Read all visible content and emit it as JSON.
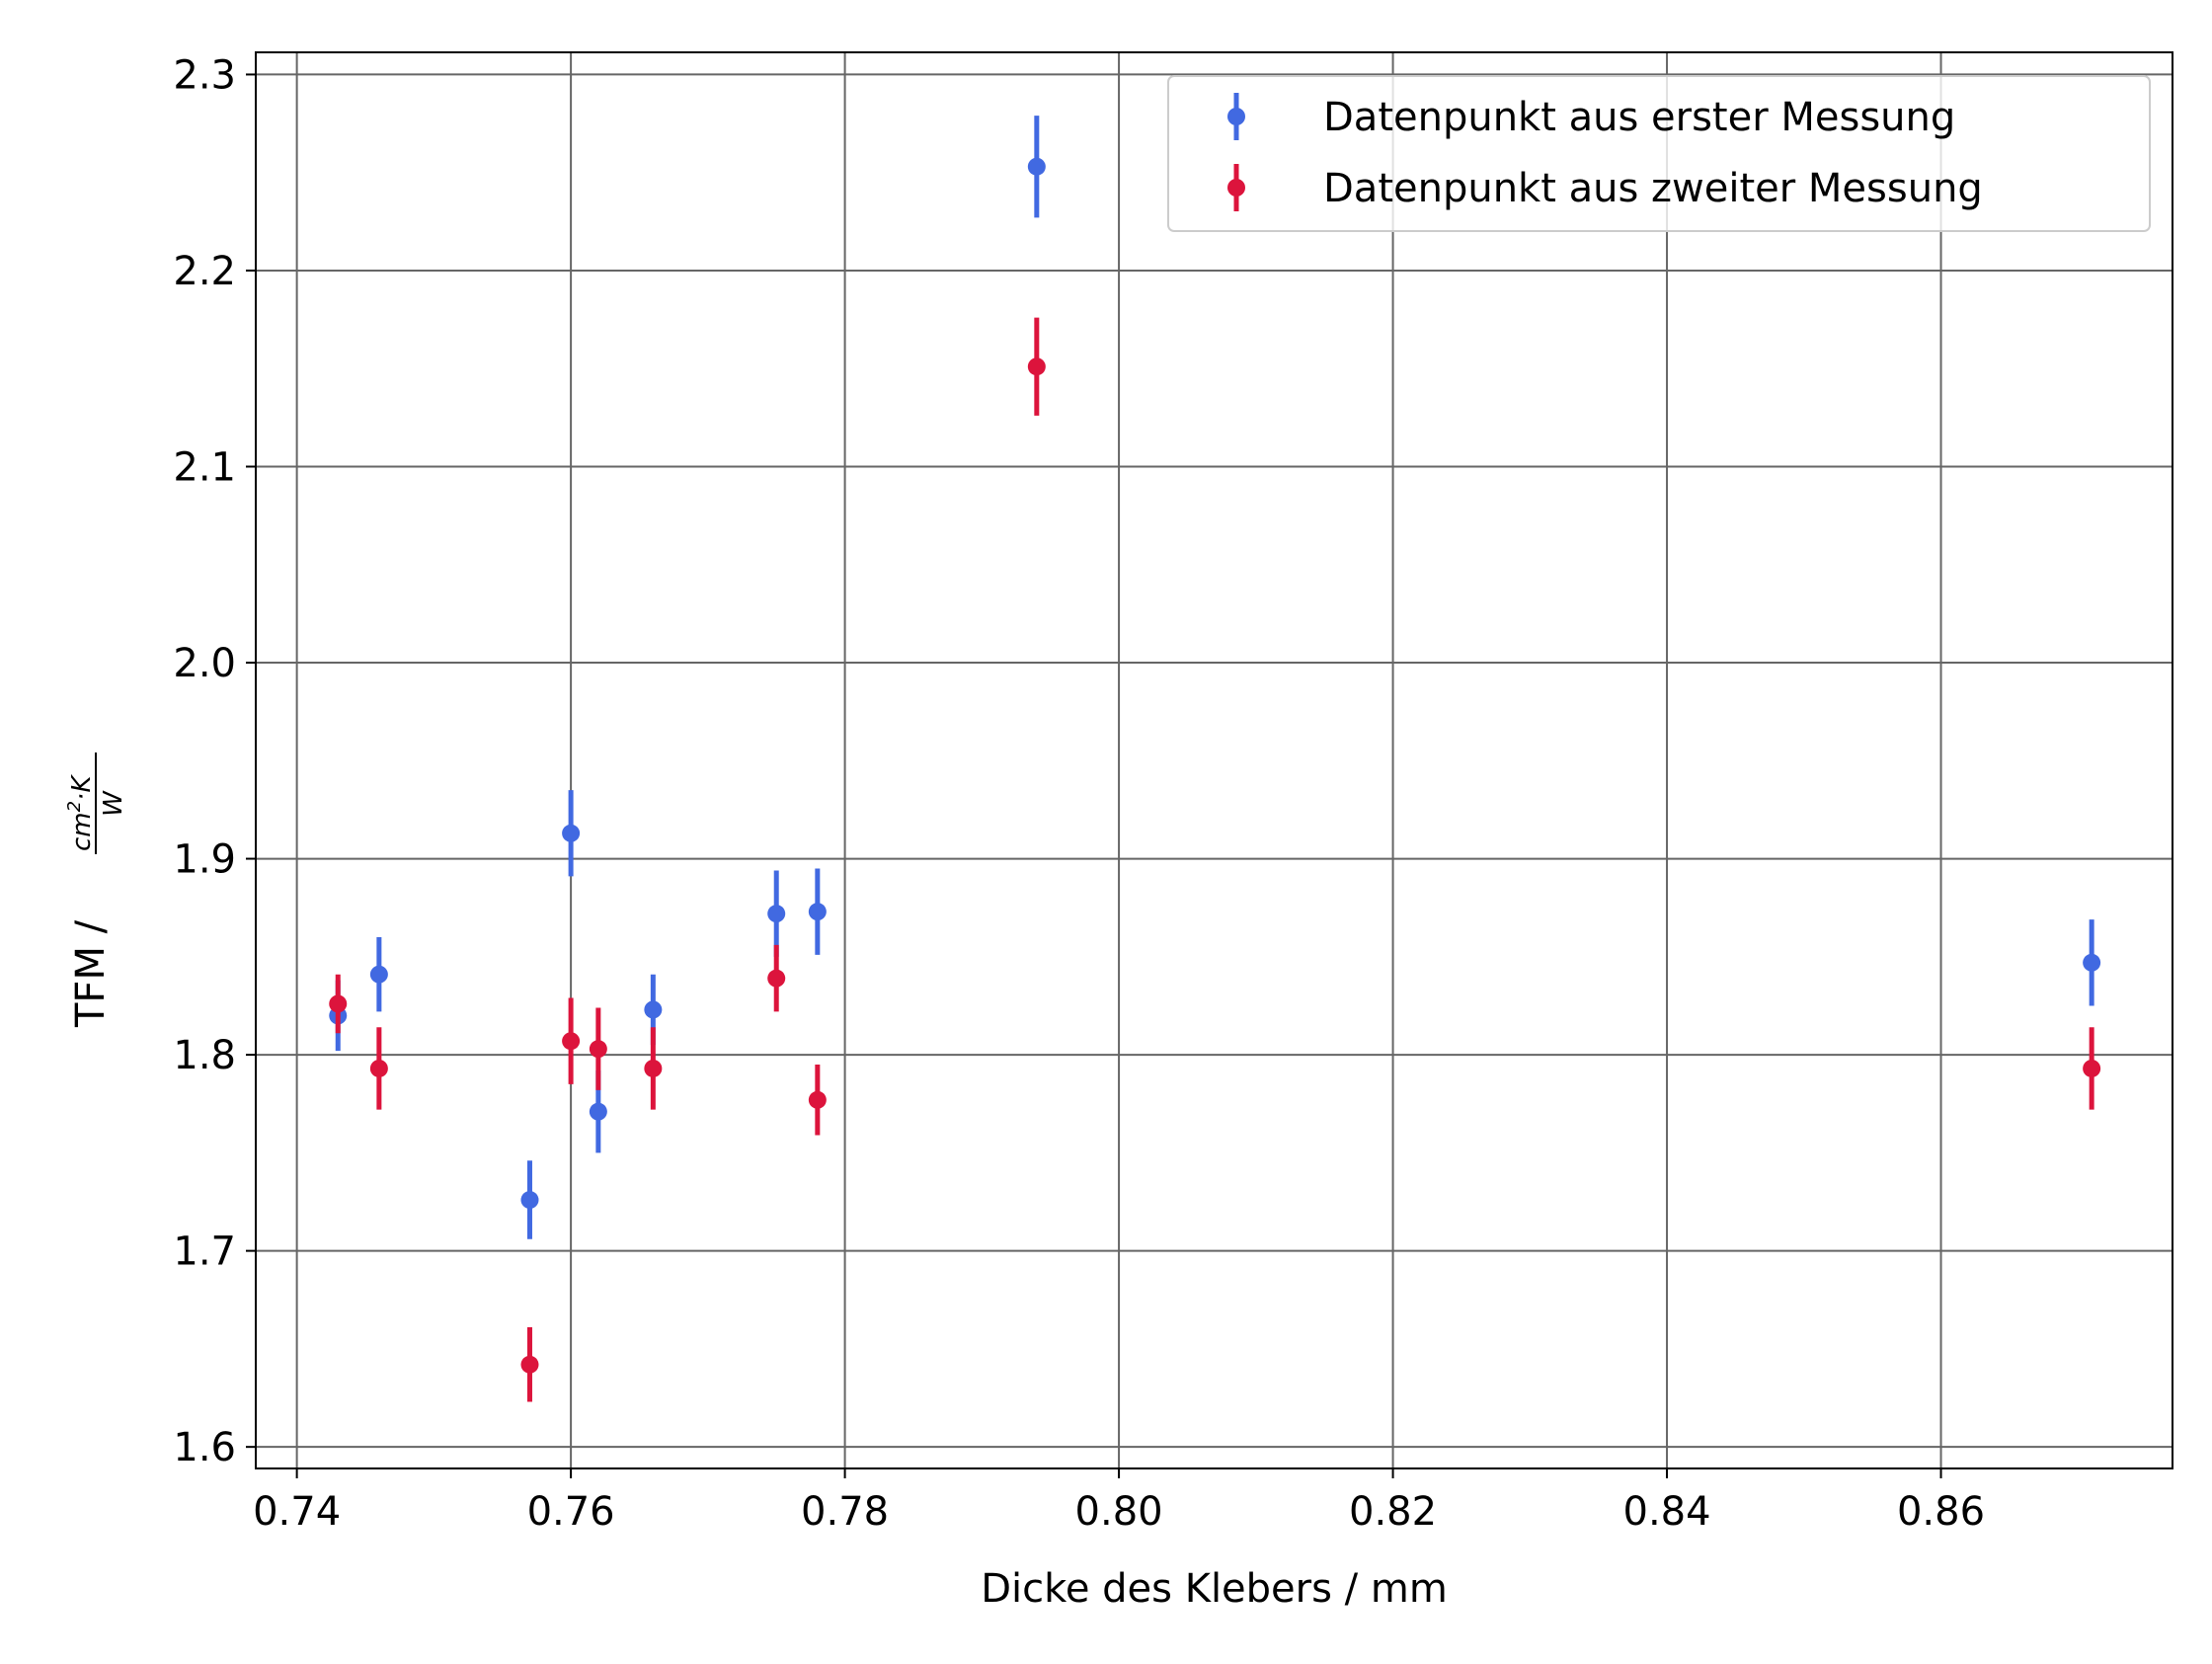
{
  "chart_data": {
    "type": "scatter",
    "title": "",
    "xlabel": "Dicke des Klebers / mm",
    "ylabel": {
      "prefix": "TFM / ",
      "numerator": "cm",
      "numerator_sup": "2",
      "numerator_suffix": "·K",
      "denominator": "W"
    },
    "xlim": [
      0.737,
      0.8769
    ],
    "ylim": [
      1.589,
      2.3113
    ],
    "xticks": [
      0.74,
      0.76,
      0.78,
      0.8,
      0.82,
      0.84,
      0.86
    ],
    "xtick_labels": [
      "0.74",
      "0.76",
      "0.78",
      "0.80",
      "0.82",
      "0.84",
      "0.86"
    ],
    "yticks": [
      1.6,
      1.7,
      1.8,
      1.9,
      2.0,
      2.1,
      2.2,
      2.3
    ],
    "ytick_labels": [
      "1.6",
      "1.7",
      "1.8",
      "1.9",
      "2.0",
      "2.1",
      "2.2",
      "2.3"
    ],
    "grid": true,
    "legend_position": "top-right",
    "series": [
      {
        "name": "Datenpunkt aus erster Messung",
        "color": "#4169e1",
        "points": [
          {
            "x": 0.743,
            "y": 1.82,
            "err": 0.018
          },
          {
            "x": 0.746,
            "y": 1.841,
            "err": 0.019
          },
          {
            "x": 0.757,
            "y": 1.726,
            "err": 0.02
          },
          {
            "x": 0.76,
            "y": 1.913,
            "err": 0.022
          },
          {
            "x": 0.762,
            "y": 1.771,
            "err": 0.021
          },
          {
            "x": 0.766,
            "y": 1.823,
            "err": 0.018
          },
          {
            "x": 0.775,
            "y": 1.872,
            "err": 0.022
          },
          {
            "x": 0.778,
            "y": 1.873,
            "err": 0.022
          },
          {
            "x": 0.794,
            "y": 2.253,
            "err": 0.026
          },
          {
            "x": 0.871,
            "y": 1.847,
            "err": 0.022
          }
        ]
      },
      {
        "name": "Datenpunkt aus zweiter Messung",
        "color": "#dc143c",
        "points": [
          {
            "x": 0.743,
            "y": 1.826,
            "err": 0.015
          },
          {
            "x": 0.746,
            "y": 1.793,
            "err": 0.021
          },
          {
            "x": 0.757,
            "y": 1.642,
            "err": 0.019
          },
          {
            "x": 0.76,
            "y": 1.807,
            "err": 0.022
          },
          {
            "x": 0.762,
            "y": 1.803,
            "err": 0.021
          },
          {
            "x": 0.766,
            "y": 1.793,
            "err": 0.021
          },
          {
            "x": 0.775,
            "y": 1.839,
            "err": 0.017
          },
          {
            "x": 0.778,
            "y": 1.777,
            "err": 0.018
          },
          {
            "x": 0.794,
            "y": 2.151,
            "err": 0.025
          },
          {
            "x": 0.871,
            "y": 1.793,
            "err": 0.021
          }
        ]
      }
    ]
  }
}
